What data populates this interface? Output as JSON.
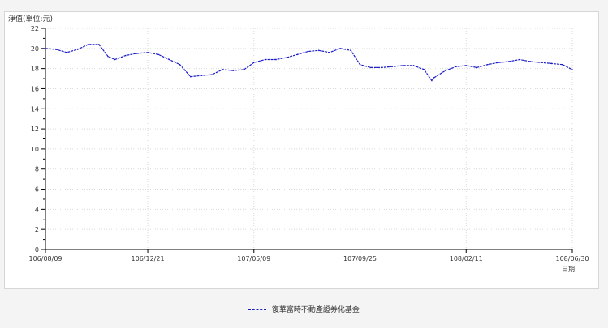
{
  "chart_data": {
    "type": "line",
    "ylabel": "淨值(單位:元)",
    "xlabel": "日期",
    "ylim": [
      0,
      22
    ],
    "yticks": [
      0,
      2,
      4,
      6,
      8,
      10,
      12,
      14,
      16,
      18,
      20,
      22
    ],
    "xticks": [
      "106/08/09",
      "106/12/21",
      "107/05/09",
      "107/09/25",
      "108/02/11",
      "108/06/30"
    ],
    "grid": true,
    "legend_position": "bottom-center",
    "series": [
      {
        "name": "復華富時不動產證券化基金",
        "color": "#1d1dc8",
        "x": [
          "106/08/09",
          "106/08/23",
          "106/09/06",
          "106/09/20",
          "106/10/04",
          "106/10/18",
          "106/10/30",
          "106/11/08",
          "106/11/22",
          "106/12/06",
          "106/12/21",
          "107/01/04",
          "107/01/18",
          "107/02/01",
          "107/02/15",
          "107/03/01",
          "107/03/15",
          "107/03/29",
          "107/04/12",
          "107/04/26",
          "107/05/09",
          "107/05/24",
          "107/06/07",
          "107/06/21",
          "107/07/05",
          "107/07/19",
          "107/08/02",
          "107/08/16",
          "107/08/30",
          "107/09/13",
          "107/09/25",
          "107/10/09",
          "107/10/23",
          "107/11/06",
          "107/11/20",
          "107/12/04",
          "107/12/18",
          "107/12/28",
          "107/12/31",
          "108/01/15",
          "108/01/29",
          "108/02/11",
          "108/02/25",
          "108/03/11",
          "108/03/25",
          "108/04/08",
          "108/04/22",
          "108/05/06",
          "108/05/20",
          "108/06/03",
          "108/06/17",
          "108/06/30"
        ],
        "values": [
          20.0,
          19.9,
          19.6,
          19.9,
          20.4,
          20.4,
          19.2,
          18.9,
          19.3,
          19.5,
          19.6,
          19.4,
          18.9,
          18.4,
          17.2,
          17.3,
          17.4,
          17.9,
          17.8,
          17.9,
          18.6,
          18.9,
          18.9,
          19.1,
          19.4,
          19.7,
          19.8,
          19.6,
          20.0,
          19.8,
          18.4,
          18.1,
          18.1,
          18.2,
          18.3,
          18.3,
          17.9,
          16.8,
          17.1,
          17.8,
          18.2,
          18.3,
          18.1,
          18.4,
          18.6,
          18.7,
          18.9,
          18.7,
          18.6,
          18.5,
          18.4,
          17.9
        ]
      }
    ]
  }
}
